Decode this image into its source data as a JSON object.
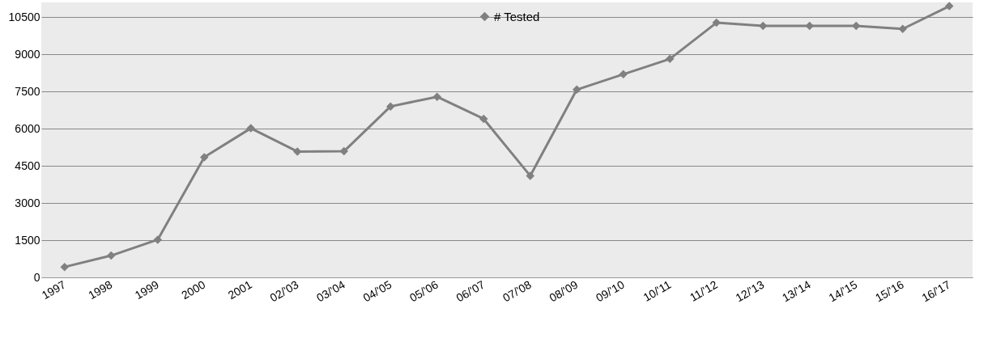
{
  "chart_data": {
    "type": "line",
    "categories": [
      "1997",
      "1998",
      "1999",
      "2000",
      "2001",
      "02/'03",
      "03/'04",
      "04/'05",
      "05/'06",
      "06/'07",
      "07/'08",
      "08/'09",
      "09/'10",
      "10/'11",
      "11/'12",
      "12/'13",
      "13/'14",
      "14/'15",
      "15/'16",
      "16/'17"
    ],
    "series": [
      {
        "name": "# Tested",
        "color": "#808080",
        "values": [
          420,
          880,
          1520,
          4850,
          6020,
          5080,
          5090,
          6900,
          7290,
          6400,
          4100,
          7580,
          8200,
          8820,
          10280,
          10150,
          10150,
          10150,
          10030,
          10950
        ]
      }
    ],
    "ylim": [
      0,
      11100
    ],
    "yticks": [
      0,
      1500,
      3000,
      4500,
      6000,
      7500,
      9000,
      10500
    ],
    "grid": "y",
    "legend": "top",
    "marker": "diamond",
    "line_style": "solid"
  }
}
